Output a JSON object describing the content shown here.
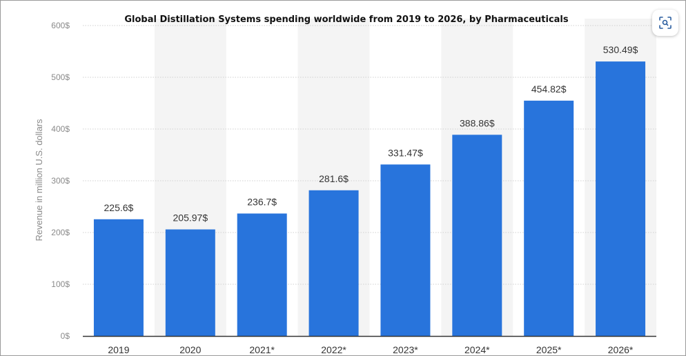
{
  "chart_data": {
    "type": "bar",
    "title": "Global Distillation Systems spending worldwide from 2019 to 2026, by Pharmaceuticals",
    "ylabel": "Revenue in million U.S. dollars",
    "xlabel": "",
    "categories": [
      "2019",
      "2020",
      "2021*",
      "2022*",
      "2023*",
      "2024*",
      "2025*",
      "2026*"
    ],
    "values": [
      225.6,
      205.97,
      236.7,
      281.6,
      331.47,
      388.86,
      454.82,
      530.49
    ],
    "value_labels": [
      "225.6$",
      "205.97$",
      "236.7$",
      "281.6$",
      "331.47$",
      "388.86$",
      "454.82$",
      "530.49$"
    ],
    "yticks": [
      0,
      100,
      200,
      300,
      400,
      500,
      600
    ],
    "ytick_labels": [
      "0$",
      "100$",
      "200$",
      "300$",
      "400$",
      "500$",
      "600$"
    ],
    "ylim": [
      0,
      600
    ],
    "grid": "horizontal dotted",
    "colors": {
      "bar": "#2874dc",
      "band": "#f4f4f4",
      "grid": "#cfcfcf",
      "axis": "#333333"
    }
  },
  "toolbar": {
    "zoom_icon": "zoom-icon"
  }
}
